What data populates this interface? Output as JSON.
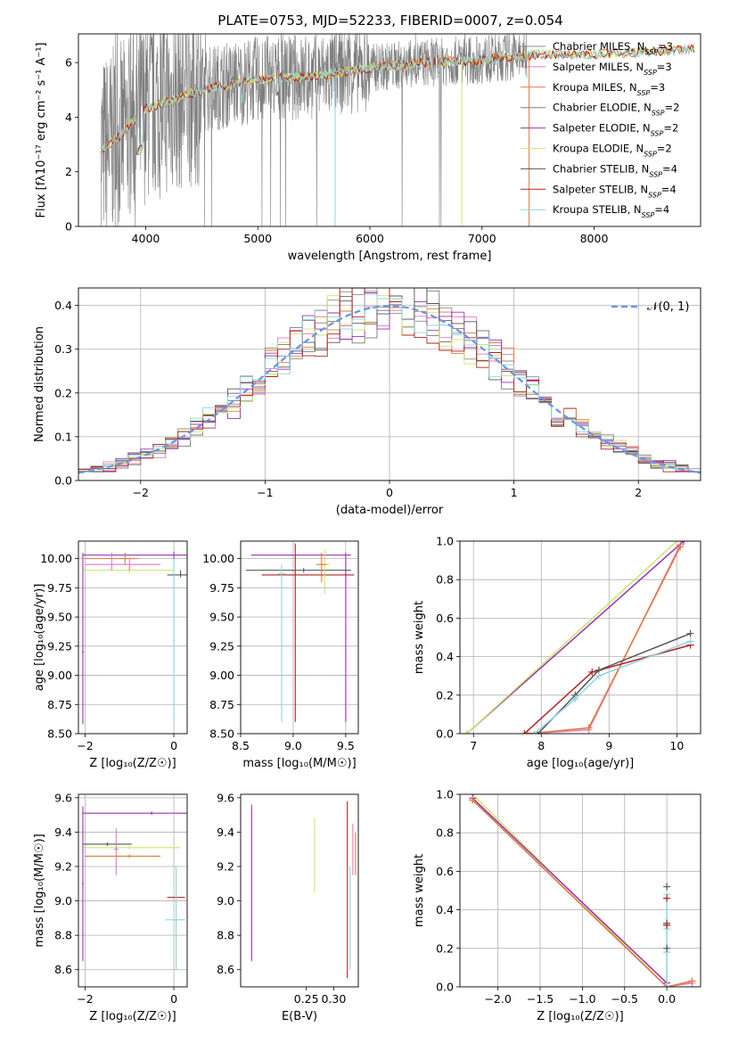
{
  "figure": {
    "title": "PLATE=0753, MJD=52233, FIBERID=0007, z=0.054"
  },
  "colors": {
    "Chabrier MILES": "#8c8c8c",
    "Salpeter MILES": "#e377c2",
    "Kroupa MILES": "#e07b39",
    "Chabrier ELODIE": "#7a7a7a",
    "Salpeter ELODIE": "#9b30b0",
    "Kroupa ELODIE": "#c9e86a",
    "Chabrier STELIB": "#555555",
    "Salpeter STELIB": "#b22222",
    "Kroupa STELIB": "#8fd3e0",
    "gauss": "#6495ed",
    "grid": "#b0b0b0"
  },
  "chart_data": [
    {
      "id": "spectrum",
      "type": "line",
      "xlabel": "wavelength [Angstrom, rest frame]",
      "ylabel": "Flux [fλ10⁻¹⁷ erg cm⁻² s⁻¹ A⁻¹]",
      "xlim": [
        3400,
        8950
      ],
      "ylim": [
        0,
        7.05
      ],
      "xticks": [
        4000,
        5000,
        6000,
        7000,
        8000
      ],
      "yticks": [
        0,
        2,
        4,
        6
      ],
      "grid": false,
      "legend": "top-right",
      "continuum": {
        "x": [
          3600,
          3700,
          3800,
          3900,
          4000,
          4200,
          4500,
          5000,
          5500,
          6000,
          6500,
          7000,
          7500,
          8000,
          8500,
          8900
        ],
        "y": [
          2.8,
          3.1,
          3.4,
          3.9,
          4.3,
          4.6,
          5.0,
          5.4,
          5.5,
          5.8,
          6.0,
          6.1,
          6.3,
          6.3,
          6.4,
          6.5
        ]
      },
      "data_range": [
        3600,
        7400
      ],
      "series": [
        {
          "name": "Chabrier MILES, N",
          "sub": "SSP",
          "suffix": "=3"
        },
        {
          "name": "Salpeter MILES, N",
          "sub": "SSP",
          "suffix": "=3"
        },
        {
          "name": "Kroupa MILES, N",
          "sub": "SSP",
          "suffix": "=3"
        },
        {
          "name": "Chabrier ELODIE, N",
          "sub": "SSP",
          "suffix": "=2"
        },
        {
          "name": "Salpeter ELODIE, N",
          "sub": "SSP",
          "suffix": "=2"
        },
        {
          "name": "Kroupa ELODIE, N",
          "sub": "SSP",
          "suffix": "=2"
        },
        {
          "name": "Chabrier STELIB, N",
          "sub": "SSP",
          "suffix": "=4"
        },
        {
          "name": "Salpeter STELIB, N",
          "sub": "SSP",
          "suffix": "=4"
        },
        {
          "name": "Kroupa STELIB, N",
          "sub": "SSP",
          "suffix": "=4"
        }
      ]
    },
    {
      "id": "residuals",
      "type": "bar",
      "xlabel": "(data-model)/error",
      "ylabel": "Normed distribution",
      "xlim": [
        -2.5,
        2.5
      ],
      "ylim": [
        0,
        0.44
      ],
      "xticks": [
        -2,
        -1,
        0,
        1,
        2
      ],
      "yticks": [
        0.0,
        0.1,
        0.2,
        0.3,
        0.4
      ],
      "grid": true,
      "legend": "top-right",
      "gauss_label": "𝒩(0, 1)",
      "bin_width": 0.1
    },
    {
      "id": "age_vs_Z",
      "type": "scatter",
      "xlabel": "Z [log₁₀(Z/Z☉)]",
      "ylabel": "age  [log₁₀(age/yr)]",
      "xlim": [
        -2.15,
        0.3
      ],
      "ylim": [
        8.5,
        10.15
      ],
      "xticks": [
        -2,
        0
      ],
      "yticks": [
        8.5,
        8.75,
        9.0,
        9.25,
        9.5,
        9.75,
        10.0
      ],
      "grid": true,
      "points": [
        {
          "s": "Salpeter ELODIE",
          "x": 0.0,
          "y": 10.03,
          "xe": [
            -2.05,
            0.3
          ],
          "ye": [
            10.0,
            10.06
          ]
        },
        {
          "s": "Kroupa ELODIE",
          "x": -1.0,
          "y": 9.9,
          "xe": [
            -2.05,
            0.0
          ],
          "ye": [
            9.87,
            9.93
          ]
        },
        {
          "s": "Salpeter MILES",
          "x": -1.0,
          "y": 9.95,
          "xe": [
            -2.0,
            -0.3
          ],
          "ye": [
            9.9,
            10.0
          ]
        },
        {
          "s": "Chabrier STELIB",
          "x": 0.15,
          "y": 9.86,
          "xe": [
            -0.15,
            0.3
          ],
          "ye": [
            9.84,
            9.9
          ]
        },
        {
          "s": "Kroupa MILES",
          "x": -1.1,
          "y": 10.0,
          "xe": [
            -2.0,
            -0.8
          ],
          "ye": [
            9.95,
            10.05
          ]
        },
        {
          "s": "Salpeter ELODIE",
          "x": -2.05,
          "y": 9.2,
          "xe": [
            -2.07,
            -2.03
          ],
          "ye": [
            8.58,
            10.05
          ]
        },
        {
          "s": "Kroupa STELIB",
          "x": 0.0,
          "y": 9.3,
          "xe": [
            -0.02,
            0.02
          ],
          "ye": [
            8.6,
            10.0
          ]
        },
        {
          "s": "Salpeter MILES",
          "x": -1.4,
          "y": 10.0,
          "xe": [
            -1.42,
            -1.38
          ],
          "ye": [
            9.9,
            10.05
          ]
        }
      ]
    },
    {
      "id": "age_vs_mass",
      "type": "scatter",
      "xlabel": "mass [log₁₀(M/M☉)]",
      "ylabel": "",
      "xlim": [
        8.5,
        9.62
      ],
      "ylim": [
        8.5,
        10.15
      ],
      "xticks": [
        8.5,
        9.0,
        9.5
      ],
      "yticks": [
        8.5,
        8.75,
        9.0,
        9.25,
        9.5,
        9.75,
        10.0
      ],
      "grid": true,
      "points": [
        {
          "s": "Salpeter ELODIE",
          "x": 9.5,
          "y": 10.03,
          "xe": [
            8.6,
            9.55
          ],
          "ye": [
            8.6,
            10.05
          ]
        },
        {
          "s": "Chabrier STELIB",
          "x": 9.1,
          "y": 9.9,
          "xe": [
            8.55,
            9.55
          ],
          "ye": [
            9.88,
            9.92
          ]
        },
        {
          "s": "Salpeter STELIB",
          "x": 9.02,
          "y": 9.86,
          "xe": [
            8.7,
            9.58
          ],
          "ye": [
            8.6,
            10.13
          ]
        },
        {
          "s": "Kroupa STELIB",
          "x": 8.89,
          "y": 9.87,
          "xe": [
            8.85,
            8.93
          ],
          "ye": [
            8.6,
            9.95
          ]
        },
        {
          "s": "Kroupa ELODIE",
          "x": 9.3,
          "y": 9.95,
          "xe": [
            9.25,
            9.35
          ],
          "ye": [
            9.7,
            10.08
          ]
        },
        {
          "s": "Kroupa MILES",
          "x": 9.27,
          "y": 9.95,
          "xe": [
            9.22,
            9.32
          ],
          "ye": [
            9.8,
            10.05
          ]
        }
      ]
    },
    {
      "id": "weight_vs_age",
      "type": "line",
      "xlabel": "age  [log₁₀(age/yr)]",
      "ylabel": "mass weight",
      "xlim": [
        6.8,
        10.35
      ],
      "ylim": [
        0,
        1.0
      ],
      "xticks": [
        7,
        8,
        9,
        10
      ],
      "yticks": [
        0.0,
        0.2,
        0.4,
        0.6,
        0.8,
        1.0
      ],
      "grid": true,
      "series": [
        {
          "s": "Salpeter ELODIE",
          "x": [
            6.9,
            10.1
          ],
          "y": [
            0.0,
            1.0
          ]
        },
        {
          "s": "Kroupa ELODIE",
          "x": [
            6.9,
            10.0
          ],
          "y": [
            0.0,
            1.0
          ]
        },
        {
          "s": "Salpeter MILES",
          "x": [
            7.8,
            8.7,
            10.05
          ],
          "y": [
            0.0,
            0.02,
            0.98
          ]
        },
        {
          "s": "Kroupa MILES",
          "x": [
            7.8,
            8.7,
            10.05
          ],
          "y": [
            0.0,
            0.03,
            0.97
          ]
        },
        {
          "s": "Salpeter STELIB",
          "x": [
            7.75,
            8.75,
            10.2
          ],
          "y": [
            0.0,
            0.32,
            0.46
          ]
        },
        {
          "s": "Chabrier STELIB",
          "x": [
            7.95,
            8.5,
            8.85,
            10.2
          ],
          "y": [
            0.0,
            0.2,
            0.33,
            0.52
          ]
        },
        {
          "s": "Kroupa STELIB",
          "x": [
            7.9,
            8.5,
            8.85,
            10.2
          ],
          "y": [
            0.0,
            0.18,
            0.3,
            0.48
          ]
        }
      ]
    },
    {
      "id": "mass_vs_Z",
      "type": "scatter",
      "xlabel": "Z [log₁₀(Z/Z☉)]",
      "ylabel": "mass [log₁₀(M/M☉)]",
      "xlim": [
        -2.15,
        0.3
      ],
      "ylim": [
        8.5,
        9.62
      ],
      "xticks": [
        -2,
        0
      ],
      "yticks": [
        8.6,
        8.8,
        9.0,
        9.2,
        9.4,
        9.6
      ],
      "grid": true,
      "points": [
        {
          "s": "Salpeter ELODIE",
          "x": -0.5,
          "y": 9.51,
          "xe": [
            -2.05,
            0.3
          ],
          "ye": [
            9.5,
            9.52
          ]
        },
        {
          "s": "Kroupa ELODIE",
          "x": -1.0,
          "y": 9.31,
          "xe": [
            -2.05,
            0.15
          ],
          "ye": [
            9.3,
            9.32
          ]
        },
        {
          "s": "Chabrier STELIB",
          "x": -1.5,
          "y": 9.33,
          "xe": [
            -2.05,
            -0.95
          ],
          "ye": [
            9.32,
            9.34
          ]
        },
        {
          "s": "Kroupa MILES",
          "x": -1.0,
          "y": 9.26,
          "xe": [
            -2.0,
            -0.3
          ],
          "ye": [
            9.25,
            9.27
          ]
        },
        {
          "s": "Salpeter ELODIE",
          "x": -2.05,
          "y": 9.1,
          "xe": [
            -2.07,
            -2.03
          ],
          "ye": [
            8.65,
            9.55
          ]
        },
        {
          "s": "Salpeter STELIB",
          "x": 0.05,
          "y": 9.02,
          "xe": [
            -0.15,
            0.25
          ],
          "ye": [
            9.01,
            9.03
          ]
        },
        {
          "s": "Kroupa STELIB",
          "x": 0.05,
          "y": 8.89,
          "xe": [
            -0.2,
            0.25
          ],
          "ye": [
            8.6,
            9.2
          ]
        },
        {
          "s": "Salpeter MILES",
          "x": -1.3,
          "y": 9.3,
          "xe": [
            -1.35,
            -1.25
          ],
          "ye": [
            9.15,
            9.42
          ]
        }
      ]
    },
    {
      "id": "mass_vs_ebv",
      "type": "scatter",
      "xlabel": "E(B-V)",
      "ylabel": "",
      "xlim": [
        0.13,
        0.345
      ],
      "ylim": [
        8.5,
        9.62
      ],
      "xticks": [
        0.25,
        0.3
      ],
      "xticklabels": [
        "0.25",
        "0.30"
      ],
      "yticks": [
        8.6,
        8.8,
        9.0,
        9.2,
        9.4,
        9.6
      ],
      "grid": false,
      "points": [
        {
          "s": "Salpeter ELODIE",
          "x": 0.15,
          "y": 9.1,
          "xe": [
            0.15,
            0.15
          ],
          "ye": [
            8.65,
            9.56
          ]
        },
        {
          "s": "Kroupa ELODIE",
          "x": 0.265,
          "y": 9.25,
          "xe": [
            0.265,
            0.265
          ],
          "ye": [
            9.05,
            9.48
          ]
        },
        {
          "s": "Salpeter STELIB",
          "x": 0.325,
          "y": 9.0,
          "xe": [
            0.325,
            0.325
          ],
          "ye": [
            8.55,
            9.58
          ]
        },
        {
          "s": "Kroupa STELIB",
          "x": 0.33,
          "y": 8.9,
          "xe": [
            0.33,
            0.33
          ],
          "ye": [
            8.6,
            9.2
          ]
        },
        {
          "s": "Salpeter MILES",
          "x": 0.335,
          "y": 9.3,
          "xe": [
            0.335,
            0.335
          ],
          "ye": [
            9.15,
            9.45
          ]
        },
        {
          "s": "Kroupa MILES",
          "x": 0.34,
          "y": 9.3,
          "xe": [
            0.34,
            0.34
          ],
          "ye": [
            9.15,
            9.4
          ]
        }
      ]
    },
    {
      "id": "weight_vs_Z",
      "type": "line",
      "xlabel": "Z [log₁₀(Z/Z☉)]",
      "ylabel": "mass weight",
      "xlim": [
        -2.45,
        0.4
      ],
      "ylim": [
        0,
        1.0
      ],
      "xticks": [
        -2.0,
        -1.5,
        -1.0,
        -0.5,
        0.0
      ],
      "xticklabels": [
        "−2.0",
        "−1.5",
        "−1.0",
        "−0.5",
        "0.0"
      ],
      "yticks": [
        0.0,
        0.2,
        0.4,
        0.6,
        0.8,
        1.0
      ],
      "grid": true,
      "series": [
        {
          "s": "Kroupa ELODIE",
          "x": [
            -2.3,
            0.0
          ],
          "y": [
            1.0,
            0.0
          ]
        },
        {
          "s": "Salpeter ELODIE",
          "x": [
            -2.3,
            0.0
          ],
          "y": [
            0.98,
            0.02
          ]
        },
        {
          "s": "Salpeter MILES",
          "x": [
            -2.3,
            0.0,
            0.3
          ],
          "y": [
            0.97,
            0.0,
            0.02
          ]
        },
        {
          "s": "Kroupa MILES",
          "x": [
            -2.3,
            0.0,
            0.3
          ],
          "y": [
            0.97,
            0.0,
            0.03
          ]
        },
        {
          "s": "Kroupa STELIB",
          "x": [
            0.0,
            0.0,
            0.0,
            0.0
          ],
          "y": [
            0.0,
            0.18,
            0.3,
            0.48
          ]
        }
      ],
      "markers": [
        {
          "s": "Chabrier STELIB",
          "x": 0.0,
          "y": [
            0.52,
            0.33,
            0.2
          ]
        },
        {
          "s": "Salpeter STELIB",
          "x": 0.0,
          "y": [
            0.46,
            0.32
          ]
        }
      ]
    }
  ]
}
